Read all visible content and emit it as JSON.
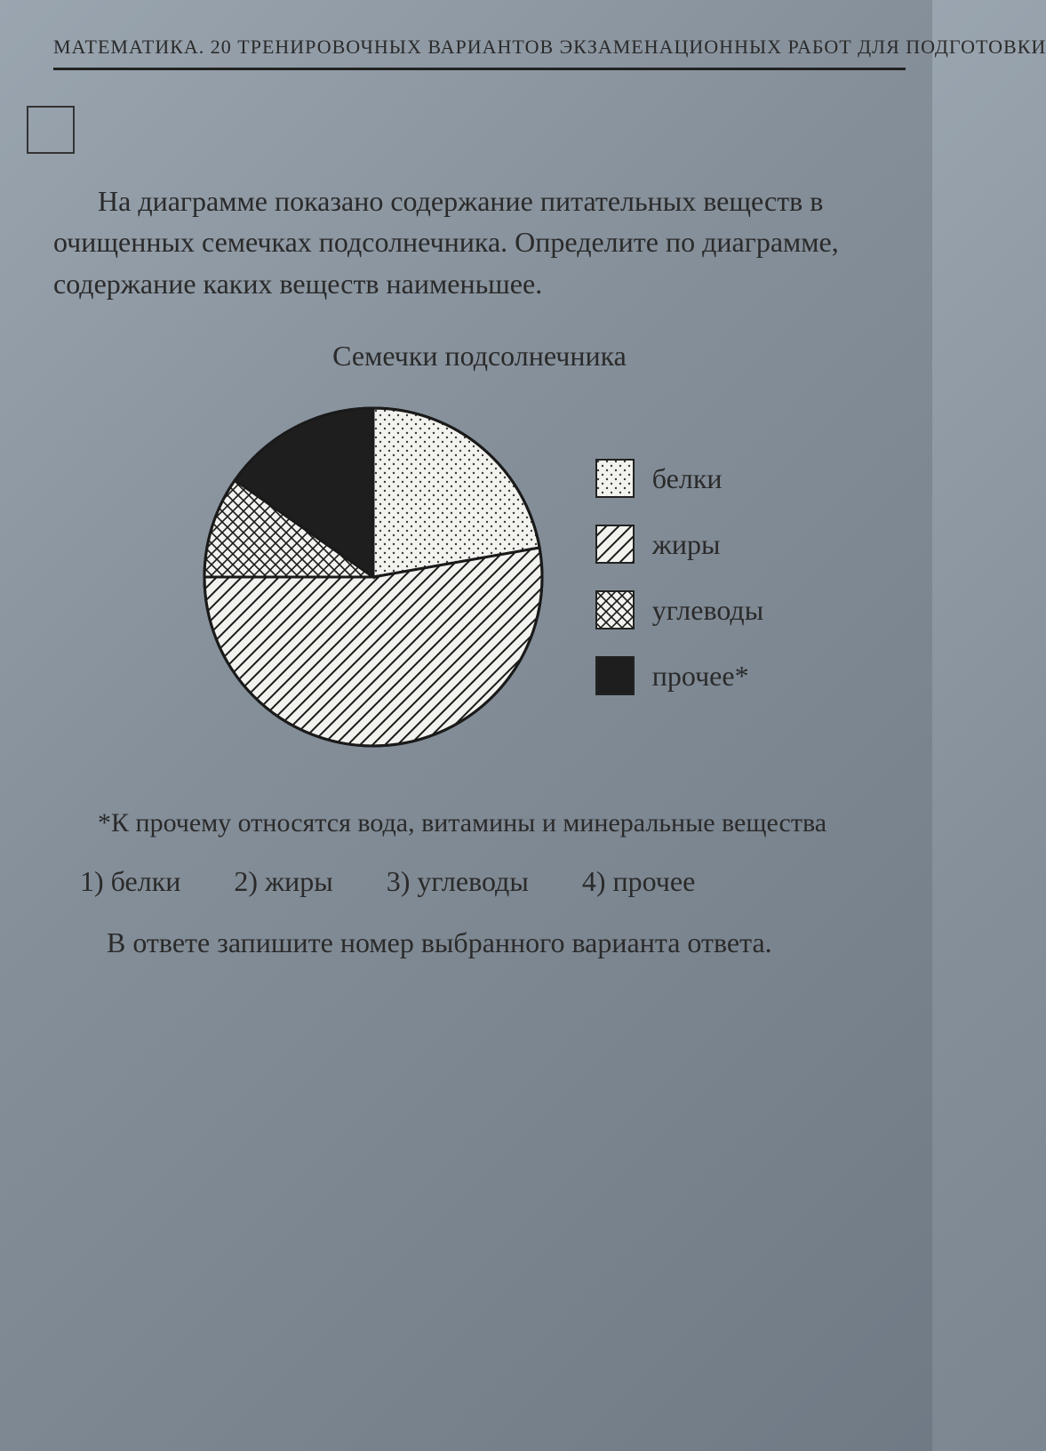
{
  "header": "МАТЕМАТИКА. 20 ТРЕНИРОВОЧНЫХ ВАРИАНТОВ ЭКЗАМЕНАЦИОННЫХ РАБОТ ДЛЯ ПОДГОТОВКИ",
  "question": "На диаграмме показано содержание питательных веществ в очищенных семечках подсолнечника. Определите по диаграмме, содержание каких веществ наименьшее.",
  "chart": {
    "title": "Семечки подсолнечника",
    "type": "pie",
    "radius": 190,
    "background_color": "#f2f2ee",
    "stroke_color": "#1a1a1a",
    "stroke_width": 3,
    "slices": [
      {
        "label": "белки",
        "angle_deg": 80,
        "pattern": "dots"
      },
      {
        "label": "жиры",
        "angle_deg": 190,
        "pattern": "hatch"
      },
      {
        "label": "углеводы",
        "angle_deg": 35,
        "pattern": "cross"
      },
      {
        "label": "прочее*",
        "angle_deg": 55,
        "pattern": "solid"
      }
    ],
    "patterns": {
      "dots": {
        "bg": "#f2f2ee",
        "fg": "#3a3a3a"
      },
      "hatch": {
        "bg": "#f2f2ee",
        "fg": "#1a1a1a"
      },
      "cross": {
        "bg": "#f2f2ee",
        "fg": "#1a1a1a"
      },
      "solid": {
        "bg": "#1e1e1e",
        "fg": "#1e1e1e"
      }
    },
    "legend_fontsize": 32,
    "swatch_size": 44
  },
  "footnote": "*К прочему относятся вода, витамины и минеральные вещества",
  "options": [
    {
      "n": "1)",
      "label": "белки"
    },
    {
      "n": "2)",
      "label": "жиры"
    },
    {
      "n": "3)",
      "label": "углеводы"
    },
    {
      "n": "4)",
      "label": "прочее"
    }
  ],
  "answer_instruction": "В ответе запишите номер выбранного варианта ответа."
}
